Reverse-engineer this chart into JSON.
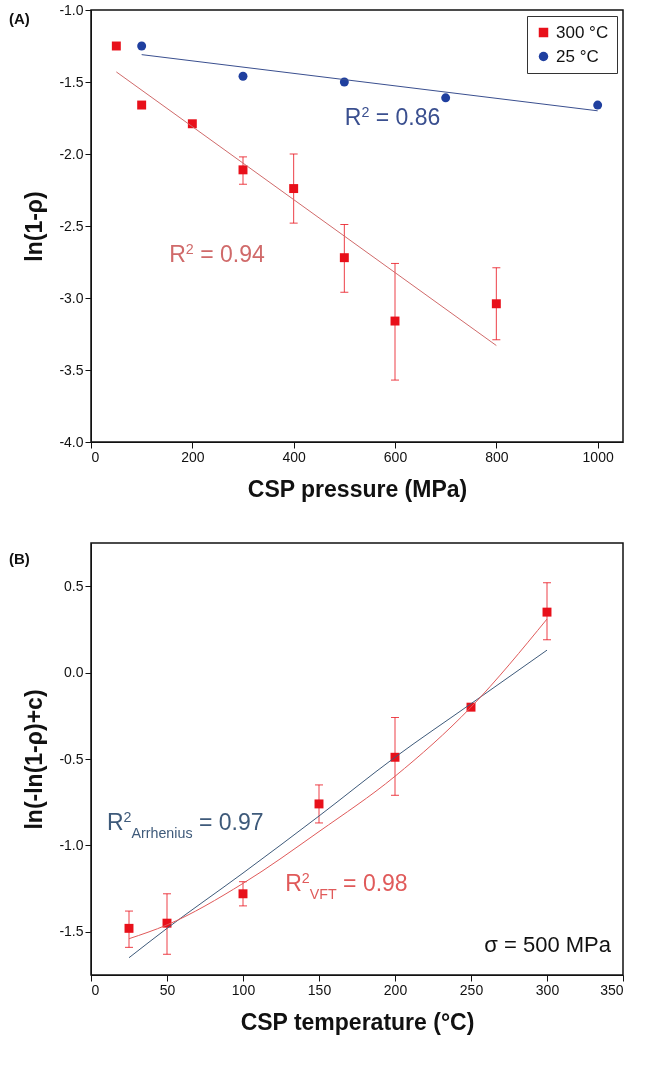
{
  "chart_data": [
    {
      "type": "scatter",
      "title": "(A)",
      "xlabel": "CSP pressure (MPa)",
      "ylabel": "ln(1-ρ)",
      "xlim": [
        0,
        1050
      ],
      "xticks": [
        0,
        200,
        400,
        600,
        800,
        1000
      ],
      "ylim": [
        -4,
        -1
      ],
      "yticks": [
        {
          "value": -4,
          "label": "-4.0"
        },
        -3.5,
        {
          "value": -3,
          "label": "-3.0"
        },
        -2.5,
        {
          "value": -2,
          "label": "-2.0"
        },
        -1.5,
        {
          "value": -1,
          "label": "-1.0"
        }
      ],
      "grid": false,
      "legend": "top right",
      "series": [
        {
          "name": "300 °C",
          "marker": "square",
          "color": "#e8101a",
          "x": [
            50,
            100,
            200,
            300,
            400,
            500,
            600,
            800
          ],
          "values": [
            -1.25,
            -1.66,
            -1.79,
            -2.11,
            -2.24,
            -2.72,
            -3.16,
            -3.04
          ],
          "errors": [
            null,
            null,
            null,
            [
              -2.21,
              -2.02
            ],
            [
              -2.48,
              -2.0
            ],
            [
              -2.96,
              -2.49
            ],
            [
              -3.57,
              -2.76
            ],
            [
              -3.29,
              -2.79
            ]
          ]
        },
        {
          "name": "25 °C",
          "marker": "circle",
          "color": "#1f3f9f",
          "x": [
            100,
            300,
            500,
            700,
            1000
          ],
          "values": [
            -1.25,
            -1.46,
            -1.5,
            -1.61,
            -1.66
          ]
        },
        {
          "type": "line",
          "color": "#d06a6a",
          "x": [
            50,
            800
          ],
          "values": [
            -1.43,
            -3.33
          ]
        },
        {
          "type": "line",
          "color": "#3a4f8f",
          "x": [
            100,
            1000
          ],
          "values": [
            -1.31,
            -1.7
          ]
        }
      ],
      "annotations": [
        "R$^{2}$ = 0.94",
        "R$^{2}$ = 0.86"
      ]
    },
    {
      "type": "scatter",
      "title": "(B)",
      "xlabel": "CSP temperature (°C)",
      "ylabel": "ln(-ln(1-ρ)+c)",
      "xlim": [
        0,
        350
      ],
      "xticks": [
        0,
        50,
        100,
        150,
        200,
        250,
        300,
        350
      ],
      "ylim": [
        -1.75,
        0.75
      ],
      "yticks": [
        -1.5,
        {
          "value": -1,
          "label": "-1.0"
        },
        -0.5,
        {
          "value": 0,
          "label": "0.0"
        },
        0.5
      ],
      "grid": false,
      "series": [
        {
          "marker": "square",
          "color": "#e8101a",
          "x": [
            25,
            50,
            100,
            150,
            200,
            250,
            300
          ],
          "values": [
            -1.48,
            -1.45,
            -1.28,
            -0.76,
            -0.49,
            -0.2,
            0.35
          ],
          "errors": [
            [
              -1.59,
              -1.38
            ],
            [
              -1.63,
              -1.28
            ],
            [
              -1.35,
              -1.21
            ],
            [
              -0.87,
              -0.65
            ],
            [
              -0.71,
              -0.26
            ],
            null,
            [
              0.19,
              0.52
            ]
          ]
        },
        {
          "type": "line",
          "color": "#3e5a7a",
          "x": [
            25,
            50,
            100,
            150,
            200,
            250,
            300
          ],
          "values": [
            -1.65,
            -1.48,
            -1.16,
            -0.83,
            -0.49,
            -0.18,
            0.13
          ]
        },
        {
          "type": "line",
          "color": "#e05a5a",
          "x": [
            25,
            50,
            100,
            150,
            200,
            250,
            300
          ],
          "values": [
            -1.54,
            -1.46,
            -1.22,
            -0.92,
            -0.6,
            -0.2,
            0.31
          ]
        }
      ],
      "annotations": [
        "R$^{2}$$_{Arrhenius}$ = 0.97",
        "R$^{2}$$_{VFT}$ = 0.98",
        "σ = 500 MPa"
      ]
    }
  ]
}
